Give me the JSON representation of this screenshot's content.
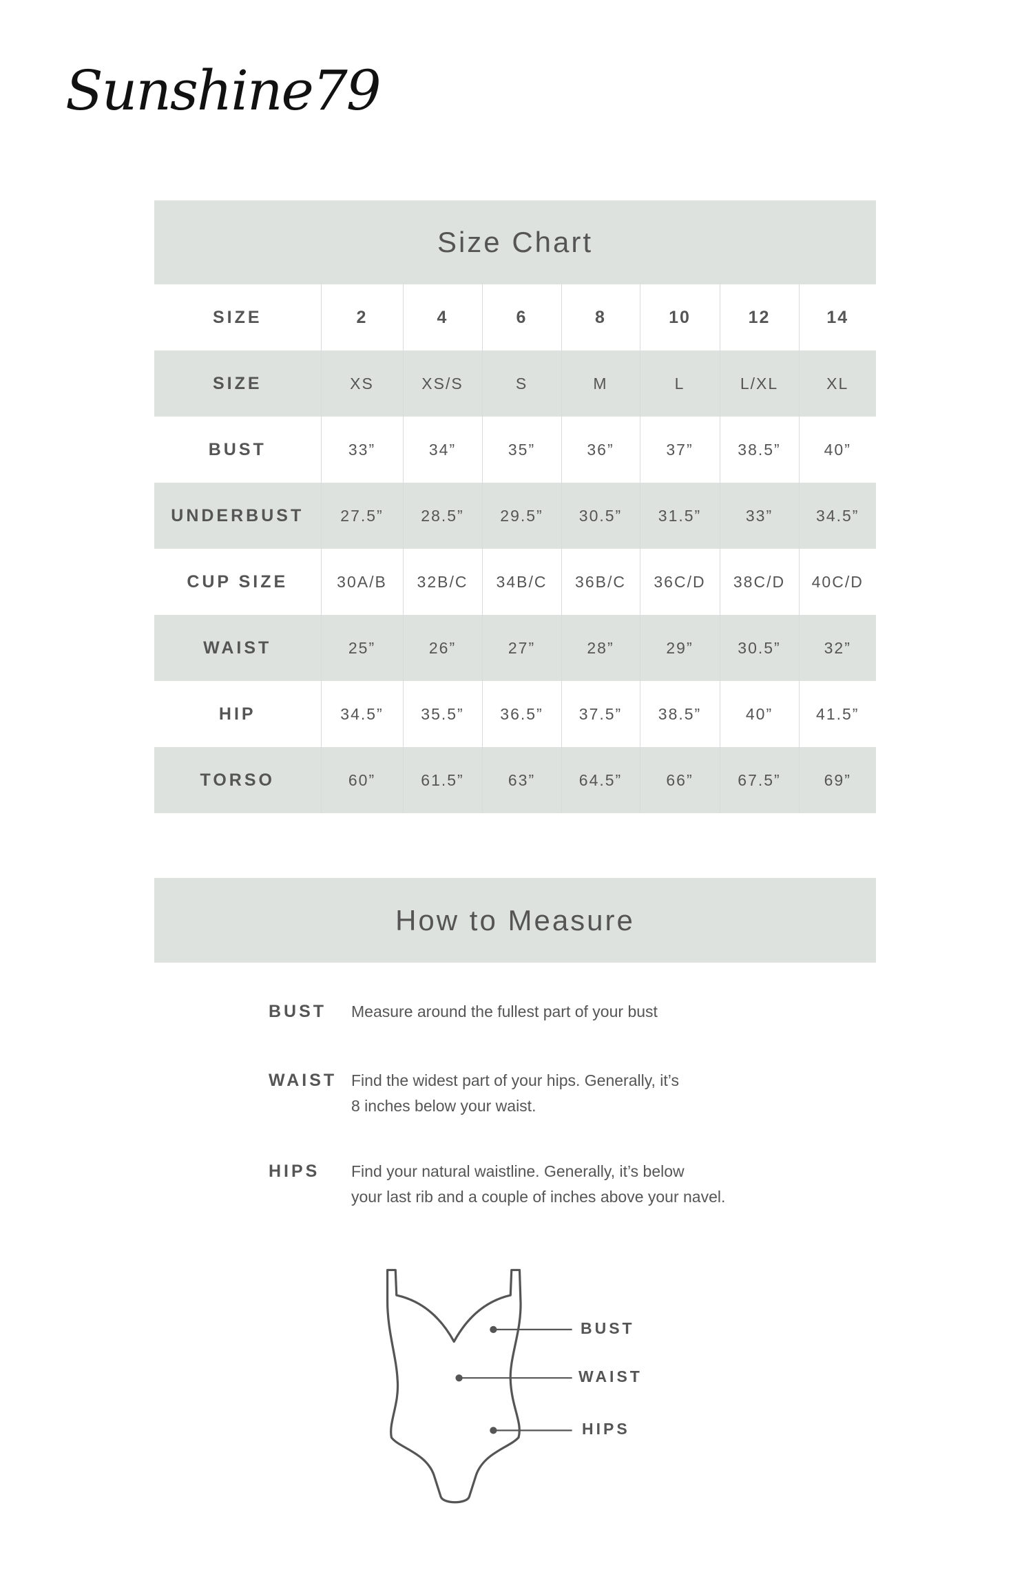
{
  "brand": {
    "logo_text": "Sunshine79"
  },
  "size_chart": {
    "title": "Size Chart",
    "header": {
      "label": "SIZE",
      "values": [
        "2",
        "4",
        "6",
        "8",
        "10",
        "12",
        "14"
      ]
    },
    "rows": [
      {
        "label": "SIZE",
        "values": [
          "XS",
          "XS/S",
          "S",
          "M",
          "L",
          "L/XL",
          "XL"
        ]
      },
      {
        "label": "BUST",
        "values": [
          "33”",
          "34”",
          "35”",
          "36”",
          "37”",
          "38.5”",
          "40”"
        ]
      },
      {
        "label": "UNDERBUST",
        "values": [
          "27.5”",
          "28.5”",
          "29.5”",
          "30.5”",
          "31.5”",
          "33”",
          "34.5”"
        ]
      },
      {
        "label": "CUP SIZE",
        "values": [
          "30A/B",
          "32B/C",
          "34B/C",
          "36B/C",
          "36C/D",
          "38C/D",
          "40C/D"
        ]
      },
      {
        "label": "WAIST",
        "values": [
          "25”",
          "26”",
          "27”",
          "28”",
          "29”",
          "30.5”",
          "32”"
        ]
      },
      {
        "label": "HIP",
        "values": [
          "34.5”",
          "35.5”",
          "36.5”",
          "37.5”",
          "38.5”",
          "40”",
          "41.5”"
        ]
      },
      {
        "label": "TORSO",
        "values": [
          "60”",
          "61.5”",
          "63”",
          "64.5”",
          "66”",
          "67.5”",
          "69”"
        ]
      }
    ]
  },
  "how_to_measure": {
    "title": "How to Measure",
    "items": [
      {
        "label": "BUST",
        "lines": [
          "Measure around the fullest part of your bust"
        ]
      },
      {
        "label": "WAIST",
        "lines": [
          "Find the widest part of your hips. Generally, it’s",
          "8 inches below your waist."
        ]
      },
      {
        "label": "HIPS",
        "lines": [
          "Find your natural waistline. Generally, it’s below",
          "your last rib and a couple of inches above your navel."
        ]
      }
    ]
  },
  "diagram": {
    "labels": [
      "BUST",
      "WAIST",
      "HIPS"
    ]
  },
  "colors": {
    "band": "#dde2df",
    "text": "#555555"
  }
}
